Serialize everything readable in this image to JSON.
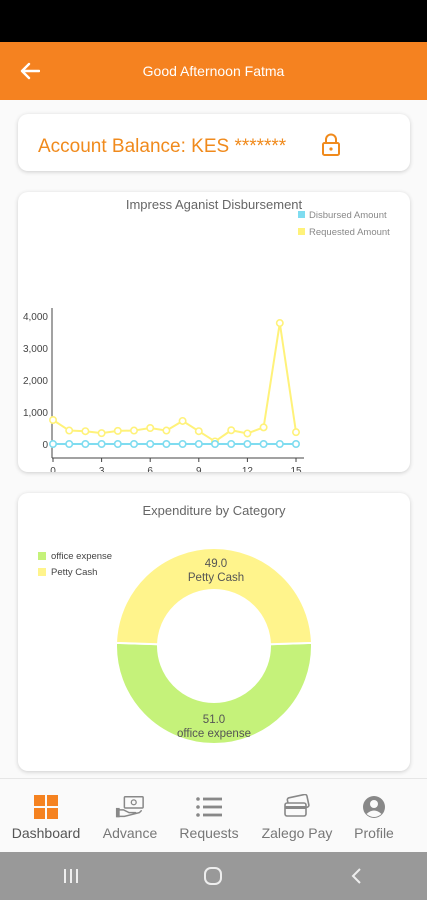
{
  "app_bar": {
    "title": "Good Afternoon Fatma"
  },
  "balance": {
    "text": "Account Balance: KES *******"
  },
  "line_chart": {
    "title": "Impress Aganist Disbursement",
    "legend": [
      "Disbursed Amount",
      "Requested Amount"
    ]
  },
  "pie_chart": {
    "title": "Expenditure by Category",
    "legend": [
      "office expense",
      "Petty Cash"
    ],
    "labels": {
      "petty_value": "49.0",
      "petty_name": "Petty Cash",
      "office_value": "51.0",
      "office_name": "office expense"
    }
  },
  "chart_data": [
    {
      "type": "line",
      "title": "Impress Aganist Disbursement",
      "x": [
        0,
        1,
        2,
        3,
        4,
        5,
        6,
        7,
        8,
        9,
        10,
        11,
        12,
        13,
        14,
        15
      ],
      "x_ticks": [
        "0",
        "3",
        "6",
        "9",
        "12",
        "15"
      ],
      "y_ticks": [
        "0",
        "1,000",
        "2,000",
        "3,000",
        "4,000"
      ],
      "ylim": [
        0,
        4000
      ],
      "xlim": [
        0,
        15
      ],
      "series": [
        {
          "name": "Disbursed Amount",
          "color": "#7fdcf0",
          "values": [
            0,
            0,
            0,
            0,
            0,
            0,
            0,
            0,
            0,
            0,
            0,
            0,
            0,
            0,
            0,
            0
          ]
        },
        {
          "name": "Requested Amount",
          "color": "#fff27a",
          "values": [
            750,
            420,
            400,
            340,
            410,
            420,
            500,
            420,
            720,
            400,
            80,
            430,
            330,
            520,
            3780,
            370
          ]
        }
      ],
      "legend_position": "top-right"
    },
    {
      "type": "pie",
      "title": "Expenditure by Category",
      "slices": [
        {
          "name": "office expense",
          "value": 51.0,
          "color": "#c5f27a"
        },
        {
          "name": "Petty Cash",
          "value": 49.0,
          "color": "#fff48c"
        }
      ],
      "legend_position": "top-left"
    }
  ],
  "colors": {
    "accent": "#f58220",
    "balance_text": "#f08a1c",
    "dashboard_icon": "#f58220"
  },
  "bottom_nav": [
    {
      "label": "Dashboard",
      "icon": "dashboard-grid-icon"
    },
    {
      "label": "Advance",
      "icon": "cash-hand-icon"
    },
    {
      "label": "Requests",
      "icon": "list-icon"
    },
    {
      "label": "Zalego Pay",
      "icon": "cards-icon"
    },
    {
      "label": "Profile",
      "icon": "user-circle-icon"
    }
  ],
  "icons": {
    "back": "arrow-left-icon",
    "lock": "lock-icon"
  }
}
